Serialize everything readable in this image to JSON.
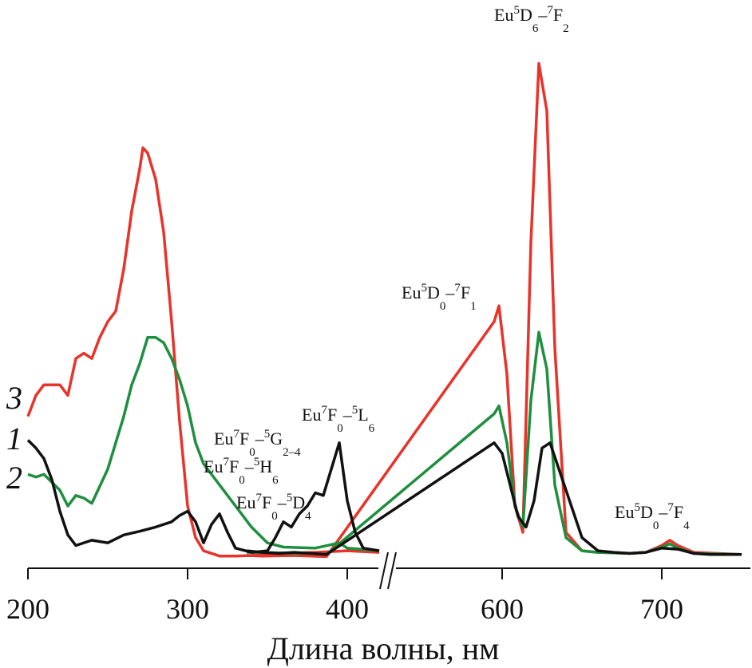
{
  "chart_data": {
    "type": "line",
    "xlabel": "Длина волны, нм",
    "ylabel": "",
    "title": "",
    "axis_break": [
      420,
      440
    ],
    "xlim": [
      200,
      750
    ],
    "x_ticks": [
      200,
      300,
      400,
      600,
      700
    ],
    "series": [
      {
        "name": "1",
        "color": "#111111",
        "x": [
          200,
          205,
          210,
          215,
          220,
          225,
          230,
          240,
          250,
          260,
          270,
          280,
          290,
          295,
          300,
          305,
          310,
          315,
          320,
          325,
          330,
          340,
          350,
          355,
          360,
          365,
          370,
          375,
          380,
          385,
          390,
          395,
          400,
          405,
          410,
          420,
          440,
          450,
          460,
          470,
          480,
          490,
          595,
          600,
          605,
          610,
          615,
          620,
          625,
          630,
          640,
          650,
          660,
          670,
          680,
          690,
          700,
          710,
          720,
          730,
          750
        ],
        "y": [
          0.225,
          0.21,
          0.19,
          0.15,
          0.09,
          0.045,
          0.025,
          0.035,
          0.03,
          0.045,
          0.052,
          0.06,
          0.07,
          0.082,
          0.09,
          0.07,
          0.03,
          0.065,
          0.085,
          0.05,
          0.02,
          0.012,
          0.015,
          0.04,
          0.07,
          0.06,
          0.085,
          0.1,
          0.125,
          0.12,
          0.17,
          0.22,
          0.11,
          0.05,
          0.02,
          0.015,
          0.015,
          0.012,
          0.01,
          0.012,
          0.01,
          0.008,
          0.22,
          0.2,
          0.14,
          0.08,
          0.06,
          0.11,
          0.21,
          0.22,
          0.13,
          0.04,
          0.015,
          0.012,
          0.01,
          0.012,
          0.02,
          0.018,
          0.01,
          0.008,
          0.008
        ]
      },
      {
        "name": "2",
        "color": "#1e8f3e",
        "x": [
          200,
          205,
          210,
          220,
          225,
          230,
          235,
          240,
          250,
          260,
          265,
          270,
          275,
          280,
          285,
          290,
          295,
          300,
          305,
          310,
          320,
          330,
          340,
          350,
          360,
          380,
          395,
          400,
          420,
          440,
          450,
          470,
          480,
          490,
          595,
          598,
          603,
          608,
          613,
          618,
          623,
          628,
          633,
          640,
          650,
          660,
          680,
          690,
          700,
          705,
          710,
          720,
          750
        ],
        "y": [
          0.16,
          0.155,
          0.16,
          0.13,
          0.1,
          0.12,
          0.115,
          0.105,
          0.17,
          0.27,
          0.33,
          0.37,
          0.42,
          0.42,
          0.41,
          0.38,
          0.34,
          0.29,
          0.22,
          0.18,
          0.14,
          0.1,
          0.06,
          0.03,
          0.022,
          0.02,
          0.03,
          0.02,
          0.015,
          0.012,
          0.012,
          0.01,
          0.01,
          0.008,
          0.275,
          0.29,
          0.22,
          0.1,
          0.06,
          0.3,
          0.43,
          0.36,
          0.14,
          0.04,
          0.015,
          0.012,
          0.01,
          0.012,
          0.022,
          0.028,
          0.02,
          0.01,
          0.008
        ]
      },
      {
        "name": "3",
        "color": "#e8332a",
        "x": [
          200,
          205,
          210,
          215,
          220,
          225,
          230,
          235,
          240,
          245,
          250,
          255,
          260,
          265,
          270,
          272,
          275,
          280,
          285,
          290,
          295,
          300,
          305,
          310,
          320,
          330,
          340,
          360,
          380,
          400,
          420,
          440,
          450,
          470,
          480,
          490,
          595,
          598,
          603,
          608,
          613,
          618,
          623,
          628,
          633,
          640,
          650,
          660,
          680,
          690,
          700,
          705,
          710,
          720,
          750
        ],
        "y": [
          0.27,
          0.31,
          0.33,
          0.33,
          0.33,
          0.31,
          0.38,
          0.39,
          0.38,
          0.42,
          0.45,
          0.47,
          0.55,
          0.66,
          0.74,
          0.78,
          0.77,
          0.72,
          0.62,
          0.45,
          0.26,
          0.1,
          0.04,
          0.015,
          0.005,
          0.005,
          0.006,
          0.01,
          0.012,
          0.015,
          0.012,
          0.006,
          0.005,
          0.006,
          0.005,
          0.004,
          0.45,
          0.48,
          0.35,
          0.1,
          0.05,
          0.6,
          0.94,
          0.85,
          0.4,
          0.05,
          0.015,
          0.012,
          0.01,
          0.012,
          0.025,
          0.035,
          0.025,
          0.012,
          0.008
        ]
      }
    ],
    "annotations": [
      {
        "id": "L6",
        "prefix": "Eu",
        "parts": [
          [
            "sup",
            "7"
          ],
          [
            "t",
            "F"
          ],
          [
            "sub",
            "0"
          ],
          [
            "t",
            "–"
          ],
          [
            "sup",
            "5"
          ],
          [
            "t",
            "L"
          ],
          [
            "sub",
            "6"
          ]
        ]
      },
      {
        "id": "G24",
        "prefix": "Eu",
        "parts": [
          [
            "sup",
            "7"
          ],
          [
            "t",
            "F"
          ],
          [
            "sub",
            "0"
          ],
          [
            "t",
            "–"
          ],
          [
            "sup",
            "5"
          ],
          [
            "t",
            "G"
          ],
          [
            "sub",
            "2–4"
          ]
        ]
      },
      {
        "id": "H6",
        "prefix": "Eu",
        "parts": [
          [
            "sup",
            "7"
          ],
          [
            "t",
            "F"
          ],
          [
            "sub",
            "0"
          ],
          [
            "t",
            "–"
          ],
          [
            "sup",
            "5"
          ],
          [
            "t",
            "H"
          ],
          [
            "sub",
            "6"
          ]
        ]
      },
      {
        "id": "D4",
        "prefix": "Eu",
        "parts": [
          [
            "sup",
            "7"
          ],
          [
            "t",
            "F"
          ],
          [
            "sub",
            "0"
          ],
          [
            "t",
            "–"
          ],
          [
            "sup",
            "5"
          ],
          [
            "t",
            "D"
          ],
          [
            "sub",
            "4"
          ]
        ]
      },
      {
        "id": "F1",
        "prefix": "Eu",
        "parts": [
          [
            "sup",
            "5"
          ],
          [
            "t",
            "D"
          ],
          [
            "sub",
            "0"
          ],
          [
            "t",
            "–"
          ],
          [
            "sup",
            "7"
          ],
          [
            "t",
            "F"
          ],
          [
            "sub",
            "1"
          ]
        ]
      },
      {
        "id": "F2",
        "prefix": "Eu",
        "parts": [
          [
            "sup",
            "5"
          ],
          [
            "t",
            "D"
          ],
          [
            "sub",
            "6"
          ],
          [
            "t",
            "–"
          ],
          [
            "sup",
            "7"
          ],
          [
            "t",
            "F"
          ],
          [
            "sub",
            "2"
          ]
        ]
      },
      {
        "id": "F4",
        "prefix": "Eu",
        "parts": [
          [
            "sup",
            "5"
          ],
          [
            "t",
            "D"
          ],
          [
            "sub",
            "0"
          ],
          [
            "t",
            "–"
          ],
          [
            "sup",
            "7"
          ],
          [
            "t",
            "F"
          ],
          [
            "sub",
            "4"
          ]
        ]
      }
    ]
  }
}
